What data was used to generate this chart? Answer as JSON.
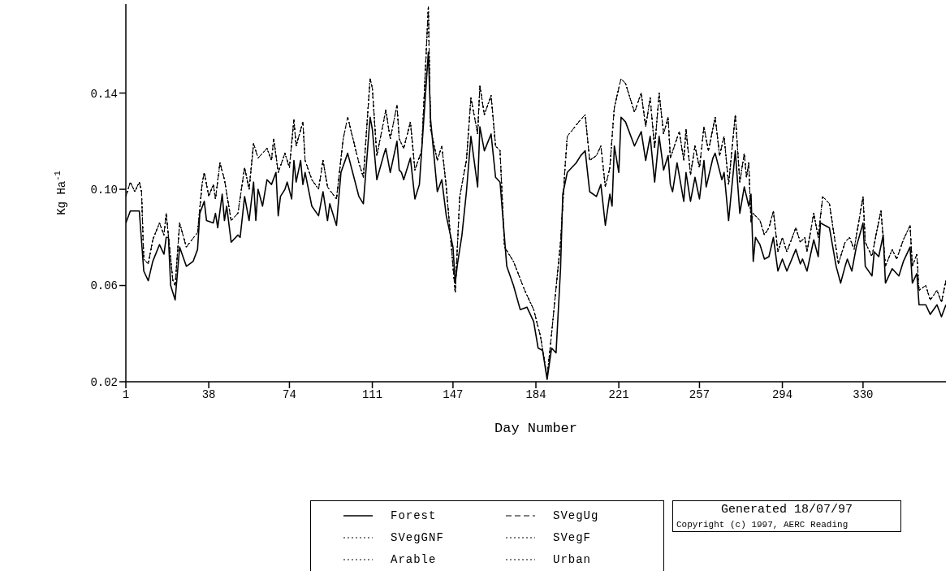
{
  "chart_data": {
    "type": "line",
    "xlabel": "Day Number",
    "ylabel": "Kg Ha$^{-1}$",
    "xlim": [
      1,
      367
    ],
    "xticks": [
      1,
      38,
      74,
      111,
      147,
      184,
      221,
      257,
      294,
      330
    ],
    "ylim": [
      0.02,
      0.177
    ],
    "yticks": [
      {
        "value": 0.02,
        "label": "0.02"
      },
      {
        "value": 0.06,
        "label": "0.06"
      },
      {
        "value": 0.1,
        "label": "0.10"
      },
      {
        "value": 0.14,
        "label": "0.14"
      }
    ],
    "grid": false,
    "legend": "bottom",
    "marker": "none",
    "series": [
      {
        "name": "Forest",
        "color": "#000000",
        "line_style": "solid",
        "x": [
          1,
          3,
          7,
          9,
          11,
          13,
          16,
          18,
          19,
          20,
          21,
          23,
          25,
          28,
          31,
          33,
          34,
          36,
          37,
          40,
          41,
          42,
          44,
          45,
          46,
          48,
          51,
          52,
          54,
          56,
          58,
          59,
          60,
          62,
          64,
          66,
          68,
          69,
          70,
          72,
          73,
          75,
          76,
          77,
          79,
          80,
          81,
          84,
          87,
          89,
          91,
          92,
          95,
          97,
          100,
          105,
          107,
          110,
          111,
          113,
          116,
          117,
          119,
          122,
          123,
          124,
          125,
          128,
          130,
          132,
          136,
          137,
          140,
          142,
          144,
          147,
          148,
          149,
          151,
          153,
          155,
          158,
          159,
          161,
          164,
          166,
          168,
          171,
          174,
          177,
          180,
          183,
          185,
          187,
          189,
          191,
          193,
          195,
          196,
          198,
          202,
          204,
          206,
          208,
          211,
          213,
          215,
          217,
          218,
          219,
          221,
          222,
          224,
          228,
          231,
          233,
          235,
          237,
          239,
          241,
          243,
          244,
          245,
          247,
          250,
          251,
          253,
          255,
          257,
          259,
          260,
          263,
          264,
          267,
          268,
          270,
          273,
          275,
          277,
          279,
          280,
          281,
          282,
          284,
          286,
          288,
          290,
          292,
          294,
          296,
          300,
          302,
          303,
          305,
          308,
          310,
          311,
          315,
          318,
          320,
          322,
          323,
          325,
          327,
          330,
          331,
          334,
          335,
          337,
          339,
          340,
          343,
          346,
          348,
          351,
          352,
          354,
          355,
          358,
          360,
          363,
          365,
          367
        ],
        "values": [
          0.086,
          0.091,
          0.091,
          0.066,
          0.062,
          0.07,
          0.077,
          0.073,
          0.08,
          0.08,
          0.06,
          0.054,
          0.076,
          0.068,
          0.07,
          0.075,
          0.09,
          0.095,
          0.087,
          0.086,
          0.09,
          0.084,
          0.098,
          0.087,
          0.093,
          0.078,
          0.081,
          0.08,
          0.097,
          0.087,
          0.103,
          0.087,
          0.1,
          0.093,
          0.104,
          0.102,
          0.107,
          0.089,
          0.097,
          0.1,
          0.103,
          0.096,
          0.112,
          0.103,
          0.112,
          0.102,
          0.107,
          0.093,
          0.089,
          0.099,
          0.087,
          0.094,
          0.085,
          0.107,
          0.115,
          0.097,
          0.094,
          0.13,
          0.125,
          0.104,
          0.114,
          0.117,
          0.107,
          0.12,
          0.108,
          0.107,
          0.104,
          0.113,
          0.096,
          0.102,
          0.157,
          0.129,
          0.099,
          0.104,
          0.089,
          0.076,
          0.061,
          0.069,
          0.081,
          0.099,
          0.122,
          0.101,
          0.126,
          0.116,
          0.123,
          0.105,
          0.103,
          0.068,
          0.06,
          0.05,
          0.051,
          0.045,
          0.034,
          0.033,
          0.021,
          0.034,
          0.032,
          0.067,
          0.098,
          0.107,
          0.111,
          0.114,
          0.116,
          0.099,
          0.097,
          0.102,
          0.085,
          0.098,
          0.093,
          0.118,
          0.107,
          0.13,
          0.128,
          0.118,
          0.124,
          0.112,
          0.122,
          0.103,
          0.122,
          0.108,
          0.114,
          0.102,
          0.099,
          0.111,
          0.095,
          0.107,
          0.095,
          0.105,
          0.096,
          0.112,
          0.101,
          0.113,
          0.115,
          0.104,
          0.107,
          0.087,
          0.116,
          0.09,
          0.101,
          0.093,
          0.098,
          0.07,
          0.08,
          0.077,
          0.071,
          0.072,
          0.08,
          0.066,
          0.071,
          0.066,
          0.075,
          0.069,
          0.071,
          0.066,
          0.079,
          0.072,
          0.086,
          0.084,
          0.068,
          0.061,
          0.068,
          0.071,
          0.066,
          0.076,
          0.086,
          0.068,
          0.064,
          0.074,
          0.072,
          0.081,
          0.061,
          0.067,
          0.064,
          0.07,
          0.076,
          0.061,
          0.065,
          0.052,
          0.052,
          0.048,
          0.052,
          0.047,
          0.052
        ]
      },
      {
        "name": "SVegUg",
        "color": "#000000",
        "line_style": "dashed",
        "x": [
          1,
          3,
          5,
          7,
          8,
          9,
          11,
          13,
          16,
          18,
          19,
          22,
          23,
          25,
          28,
          33,
          35,
          36,
          38,
          40,
          41,
          43,
          45,
          48,
          51,
          54,
          56,
          58,
          60,
          64,
          66,
          67,
          69,
          72,
          74,
          76,
          77,
          80,
          81,
          84,
          87,
          89,
          91,
          95,
          98,
          100,
          105,
          107,
          110,
          111,
          113,
          116,
          117,
          119,
          122,
          123,
          125,
          128,
          130,
          133,
          136,
          137,
          140,
          142,
          144,
          148,
          150,
          153,
          155,
          158,
          159,
          161,
          164,
          166,
          168,
          170,
          174,
          179,
          183,
          186,
          189,
          191,
          195,
          197,
          198,
          204,
          206,
          208,
          211,
          213,
          215,
          217,
          219,
          222,
          224,
          228,
          231,
          233,
          235,
          237,
          239,
          241,
          243,
          244,
          248,
          250,
          251,
          253,
          255,
          257,
          259,
          261,
          264,
          266,
          268,
          270,
          273,
          275,
          277,
          278,
          279,
          280,
          281,
          284,
          286,
          288,
          290,
          292,
          294,
          296,
          300,
          302,
          304,
          305,
          308,
          310,
          312,
          315,
          319,
          322,
          324,
          326,
          330,
          331,
          334,
          336,
          338,
          340,
          343,
          345,
          348,
          351,
          352,
          354,
          355,
          358,
          360,
          363,
          365,
          367
        ],
        "values": [
          0.097,
          0.103,
          0.099,
          0.103,
          0.099,
          0.071,
          0.069,
          0.079,
          0.086,
          0.081,
          0.09,
          0.062,
          0.06,
          0.086,
          0.076,
          0.082,
          0.102,
          0.107,
          0.097,
          0.102,
          0.096,
          0.111,
          0.104,
          0.087,
          0.09,
          0.109,
          0.1,
          0.119,
          0.113,
          0.117,
          0.112,
          0.121,
          0.107,
          0.115,
          0.109,
          0.129,
          0.118,
          0.128,
          0.112,
          0.104,
          0.1,
          0.112,
          0.101,
          0.096,
          0.121,
          0.13,
          0.111,
          0.105,
          0.146,
          0.142,
          0.114,
          0.128,
          0.133,
          0.121,
          0.135,
          0.121,
          0.117,
          0.128,
          0.108,
          0.116,
          0.176,
          0.125,
          0.112,
          0.118,
          0.101,
          0.057,
          0.097,
          0.112,
          0.138,
          0.123,
          0.143,
          0.131,
          0.139,
          0.118,
          0.116,
          0.076,
          0.07,
          0.058,
          0.05,
          0.039,
          0.022,
          0.04,
          0.078,
          0.109,
          0.122,
          0.129,
          0.131,
          0.112,
          0.114,
          0.118,
          0.101,
          0.109,
          0.134,
          0.146,
          0.144,
          0.132,
          0.14,
          0.126,
          0.138,
          0.117,
          0.14,
          0.123,
          0.13,
          0.113,
          0.124,
          0.112,
          0.125,
          0.106,
          0.118,
          0.109,
          0.126,
          0.116,
          0.13,
          0.114,
          0.122,
          0.102,
          0.131,
          0.103,
          0.115,
          0.105,
          0.111,
          0.086,
          0.09,
          0.087,
          0.081,
          0.084,
          0.091,
          0.074,
          0.08,
          0.074,
          0.084,
          0.078,
          0.08,
          0.074,
          0.09,
          0.08,
          0.097,
          0.094,
          0.069,
          0.078,
          0.08,
          0.075,
          0.097,
          0.078,
          0.072,
          0.082,
          0.091,
          0.068,
          0.075,
          0.071,
          0.079,
          0.085,
          0.068,
          0.073,
          0.058,
          0.06,
          0.054,
          0.058,
          0.053,
          0.062
        ]
      },
      {
        "name": "SVegGNF",
        "color": "#000000",
        "line_style": "dotted",
        "x": [
          1,
          3,
          5,
          7,
          8,
          9,
          11,
          13,
          16,
          18,
          19,
          22,
          23,
          25,
          28,
          33,
          35,
          36,
          38,
          40,
          41,
          43,
          45,
          48,
          51,
          54,
          56,
          58,
          60,
          64,
          66,
          67,
          69,
          72,
          74,
          76,
          77,
          80,
          81,
          84,
          87,
          89,
          91,
          95,
          98,
          100,
          105,
          107,
          110,
          111,
          113,
          116,
          117,
          119,
          122,
          123,
          125,
          128,
          130,
          133,
          136,
          137,
          140,
          142,
          144,
          148,
          150,
          153,
          155,
          158,
          159,
          161,
          164,
          166,
          168,
          170,
          174,
          179,
          183,
          186,
          189,
          191,
          195,
          197,
          198,
          204,
          206,
          208,
          211,
          213,
          215,
          217,
          219,
          222,
          224,
          228,
          231,
          233,
          235,
          237,
          239,
          241,
          243,
          244,
          248,
          250,
          251,
          253,
          255,
          257,
          259,
          261,
          264,
          266,
          268,
          270,
          273,
          275,
          277,
          278,
          279,
          280,
          281,
          284,
          286,
          288,
          290,
          292,
          294,
          296,
          300,
          302,
          304,
          305,
          308,
          310,
          312,
          315,
          319,
          322,
          324,
          326,
          330,
          331,
          334,
          336,
          338,
          340,
          343,
          345,
          348,
          351,
          352,
          354,
          355,
          358,
          360,
          363,
          365,
          367
        ],
        "values": [
          0.097,
          0.103,
          0.099,
          0.103,
          0.099,
          0.071,
          0.069,
          0.079,
          0.086,
          0.081,
          0.09,
          0.062,
          0.06,
          0.086,
          0.076,
          0.082,
          0.102,
          0.107,
          0.097,
          0.102,
          0.096,
          0.111,
          0.104,
          0.087,
          0.09,
          0.109,
          0.1,
          0.119,
          0.113,
          0.117,
          0.112,
          0.121,
          0.107,
          0.115,
          0.109,
          0.129,
          0.118,
          0.128,
          0.112,
          0.104,
          0.1,
          0.112,
          0.101,
          0.096,
          0.121,
          0.13,
          0.111,
          0.105,
          0.146,
          0.142,
          0.114,
          0.128,
          0.133,
          0.121,
          0.135,
          0.121,
          0.117,
          0.128,
          0.108,
          0.116,
          0.176,
          0.125,
          0.112,
          0.118,
          0.101,
          0.057,
          0.097,
          0.112,
          0.138,
          0.123,
          0.143,
          0.131,
          0.139,
          0.118,
          0.116,
          0.076,
          0.07,
          0.058,
          0.05,
          0.039,
          0.022,
          0.04,
          0.078,
          0.109,
          0.122,
          0.129,
          0.131,
          0.112,
          0.114,
          0.118,
          0.101,
          0.109,
          0.134,
          0.146,
          0.144,
          0.132,
          0.14,
          0.126,
          0.138,
          0.117,
          0.14,
          0.123,
          0.13,
          0.113,
          0.124,
          0.112,
          0.125,
          0.106,
          0.118,
          0.109,
          0.126,
          0.116,
          0.13,
          0.114,
          0.122,
          0.102,
          0.131,
          0.103,
          0.115,
          0.105,
          0.111,
          0.086,
          0.09,
          0.087,
          0.081,
          0.084,
          0.091,
          0.074,
          0.08,
          0.074,
          0.084,
          0.078,
          0.08,
          0.074,
          0.09,
          0.08,
          0.097,
          0.094,
          0.069,
          0.078,
          0.08,
          0.075,
          0.097,
          0.078,
          0.072,
          0.082,
          0.091,
          0.068,
          0.075,
          0.071,
          0.079,
          0.085,
          0.068,
          0.073,
          0.058,
          0.06,
          0.054,
          0.058,
          0.053,
          0.062
        ]
      },
      {
        "name": "SVegF",
        "color": "#000000",
        "line_style": "dotted",
        "x": [
          1,
          3,
          5,
          7,
          8,
          9,
          11,
          13,
          16,
          18,
          19,
          22,
          23,
          25,
          28,
          33,
          35,
          36,
          38,
          40,
          41,
          43,
          45,
          48,
          51,
          54,
          56,
          58,
          60,
          64,
          66,
          67,
          69,
          72,
          74,
          76,
          77,
          80,
          81,
          84,
          87,
          89,
          91,
          95,
          98,
          100,
          105,
          107,
          110,
          111,
          113,
          116,
          117,
          119,
          122,
          123,
          125,
          128,
          130,
          133,
          136,
          137,
          140,
          142,
          144,
          148,
          150,
          153,
          155,
          158,
          159,
          161,
          164,
          166,
          168,
          170,
          174,
          179,
          183,
          186,
          189,
          191,
          195,
          197,
          198,
          204,
          206,
          208,
          211,
          213,
          215,
          217,
          219,
          222,
          224,
          228,
          231,
          233,
          235,
          237,
          239,
          241,
          243,
          244,
          248,
          250,
          251,
          253,
          255,
          257,
          259,
          261,
          264,
          266,
          268,
          270,
          273,
          275,
          277,
          278,
          279,
          280,
          281,
          284,
          286,
          288,
          290,
          292,
          294,
          296,
          300,
          302,
          304,
          305,
          308,
          310,
          312,
          315,
          319,
          322,
          324,
          326,
          330,
          331,
          334,
          336,
          338,
          340,
          343,
          345,
          348,
          351,
          352,
          354,
          355,
          358,
          360,
          363,
          365,
          367
        ],
        "values": [
          0.097,
          0.103,
          0.099,
          0.103,
          0.099,
          0.071,
          0.069,
          0.079,
          0.086,
          0.081,
          0.09,
          0.062,
          0.06,
          0.086,
          0.076,
          0.082,
          0.102,
          0.107,
          0.097,
          0.102,
          0.096,
          0.111,
          0.104,
          0.087,
          0.09,
          0.109,
          0.1,
          0.119,
          0.113,
          0.117,
          0.112,
          0.121,
          0.107,
          0.115,
          0.109,
          0.129,
          0.118,
          0.128,
          0.112,
          0.104,
          0.1,
          0.112,
          0.101,
          0.096,
          0.121,
          0.13,
          0.111,
          0.105,
          0.146,
          0.142,
          0.114,
          0.128,
          0.133,
          0.121,
          0.135,
          0.121,
          0.117,
          0.128,
          0.108,
          0.116,
          0.176,
          0.125,
          0.112,
          0.118,
          0.101,
          0.057,
          0.097,
          0.112,
          0.138,
          0.123,
          0.143,
          0.131,
          0.139,
          0.118,
          0.116,
          0.076,
          0.07,
          0.058,
          0.05,
          0.039,
          0.022,
          0.04,
          0.078,
          0.109,
          0.122,
          0.129,
          0.131,
          0.112,
          0.114,
          0.118,
          0.101,
          0.109,
          0.134,
          0.146,
          0.144,
          0.132,
          0.14,
          0.126,
          0.138,
          0.117,
          0.14,
          0.123,
          0.13,
          0.113,
          0.124,
          0.112,
          0.125,
          0.106,
          0.118,
          0.109,
          0.126,
          0.116,
          0.13,
          0.114,
          0.122,
          0.102,
          0.131,
          0.103,
          0.115,
          0.105,
          0.111,
          0.086,
          0.09,
          0.087,
          0.081,
          0.084,
          0.091,
          0.074,
          0.08,
          0.074,
          0.084,
          0.078,
          0.08,
          0.074,
          0.09,
          0.08,
          0.097,
          0.094,
          0.069,
          0.078,
          0.08,
          0.075,
          0.097,
          0.078,
          0.072,
          0.082,
          0.091,
          0.068,
          0.075,
          0.071,
          0.079,
          0.085,
          0.068,
          0.073,
          0.058,
          0.06,
          0.054,
          0.058,
          0.053,
          0.062
        ]
      },
      {
        "name": "Arable",
        "color": "#000000",
        "line_style": "dotted",
        "x": [
          1,
          3,
          5,
          7,
          8,
          9,
          11,
          13,
          16,
          18,
          19,
          22,
          23,
          25,
          28,
          33,
          35,
          36,
          38,
          40,
          41,
          43,
          45,
          48,
          51,
          54,
          56,
          58,
          60,
          64,
          66,
          67,
          69,
          72,
          74,
          76,
          77,
          80,
          81,
          84,
          87,
          89,
          91,
          95,
          98,
          100,
          105,
          107,
          110,
          111,
          113,
          116,
          117,
          119,
          122,
          123,
          125,
          128,
          130,
          133,
          136,
          137,
          140,
          142,
          144,
          148,
          150,
          153,
          155,
          158,
          159,
          161,
          164,
          166,
          168,
          170,
          174,
          179,
          183,
          186,
          189,
          191,
          195,
          197,
          198,
          204,
          206,
          208,
          211,
          213,
          215,
          217,
          219,
          222,
          224,
          228,
          231,
          233,
          235,
          237,
          239,
          241,
          243,
          244,
          248,
          250,
          251,
          253,
          255,
          257,
          259,
          261,
          264,
          266,
          268,
          270,
          273,
          275,
          277,
          278,
          279,
          280,
          281,
          284,
          286,
          288,
          290,
          292,
          294,
          296,
          300,
          302,
          304,
          305,
          308,
          310,
          312,
          315,
          319,
          322,
          324,
          326,
          330,
          331,
          334,
          336,
          338,
          340,
          343,
          345,
          348,
          351,
          352,
          354,
          355,
          358,
          360,
          363,
          365,
          367
        ],
        "values": [
          0.097,
          0.103,
          0.099,
          0.103,
          0.099,
          0.071,
          0.069,
          0.079,
          0.086,
          0.081,
          0.09,
          0.062,
          0.06,
          0.086,
          0.076,
          0.082,
          0.102,
          0.107,
          0.097,
          0.102,
          0.096,
          0.111,
          0.104,
          0.087,
          0.09,
          0.109,
          0.1,
          0.119,
          0.113,
          0.117,
          0.112,
          0.121,
          0.107,
          0.115,
          0.109,
          0.129,
          0.118,
          0.128,
          0.112,
          0.104,
          0.1,
          0.112,
          0.101,
          0.096,
          0.121,
          0.13,
          0.111,
          0.105,
          0.146,
          0.142,
          0.114,
          0.128,
          0.133,
          0.121,
          0.135,
          0.121,
          0.117,
          0.128,
          0.108,
          0.116,
          0.176,
          0.125,
          0.112,
          0.118,
          0.101,
          0.057,
          0.097,
          0.112,
          0.138,
          0.123,
          0.143,
          0.131,
          0.139,
          0.118,
          0.116,
          0.076,
          0.07,
          0.058,
          0.05,
          0.039,
          0.022,
          0.04,
          0.078,
          0.109,
          0.122,
          0.129,
          0.131,
          0.112,
          0.114,
          0.118,
          0.101,
          0.109,
          0.134,
          0.146,
          0.144,
          0.132,
          0.14,
          0.126,
          0.138,
          0.117,
          0.14,
          0.123,
          0.13,
          0.113,
          0.124,
          0.112,
          0.125,
          0.106,
          0.118,
          0.109,
          0.126,
          0.116,
          0.13,
          0.114,
          0.122,
          0.102,
          0.131,
          0.103,
          0.115,
          0.105,
          0.111,
          0.086,
          0.09,
          0.087,
          0.081,
          0.084,
          0.091,
          0.074,
          0.08,
          0.074,
          0.084,
          0.078,
          0.08,
          0.074,
          0.09,
          0.08,
          0.097,
          0.094,
          0.069,
          0.078,
          0.08,
          0.075,
          0.097,
          0.078,
          0.072,
          0.082,
          0.091,
          0.068,
          0.075,
          0.071,
          0.079,
          0.085,
          0.068,
          0.073,
          0.058,
          0.06,
          0.054,
          0.058,
          0.053,
          0.062
        ]
      },
      {
        "name": "Urban",
        "color": "#000000",
        "line_style": "dotted",
        "x": [
          1,
          3,
          5,
          7,
          8,
          9,
          11,
          13,
          16,
          18,
          19,
          22,
          23,
          25,
          28,
          33,
          35,
          36,
          38,
          40,
          41,
          43,
          45,
          48,
          51,
          54,
          56,
          58,
          60,
          64,
          66,
          67,
          69,
          72,
          74,
          76,
          77,
          80,
          81,
          84,
          87,
          89,
          91,
          95,
          98,
          100,
          105,
          107,
          110,
          111,
          113,
          116,
          117,
          119,
          122,
          123,
          125,
          128,
          130,
          133,
          136,
          137,
          140,
          142,
          144,
          148,
          150,
          153,
          155,
          158,
          159,
          161,
          164,
          166,
          168,
          170,
          174,
          179,
          183,
          186,
          189,
          191,
          195,
          197,
          198,
          204,
          206,
          208,
          211,
          213,
          215,
          217,
          219,
          222,
          224,
          228,
          231,
          233,
          235,
          237,
          239,
          241,
          243,
          244,
          248,
          250,
          251,
          253,
          255,
          257,
          259,
          261,
          264,
          266,
          268,
          270,
          273,
          275,
          277,
          278,
          279,
          280,
          281,
          284,
          286,
          288,
          290,
          292,
          294,
          296,
          300,
          302,
          304,
          305,
          308,
          310,
          312,
          315,
          319,
          322,
          324,
          326,
          330,
          331,
          334,
          336,
          338,
          340,
          343,
          345,
          348,
          351,
          352,
          354,
          355,
          358,
          360,
          363,
          365,
          367
        ],
        "values": [
          0.097,
          0.103,
          0.099,
          0.103,
          0.099,
          0.071,
          0.069,
          0.079,
          0.086,
          0.081,
          0.09,
          0.062,
          0.06,
          0.086,
          0.076,
          0.082,
          0.102,
          0.107,
          0.097,
          0.102,
          0.096,
          0.111,
          0.104,
          0.087,
          0.09,
          0.109,
          0.1,
          0.119,
          0.113,
          0.117,
          0.112,
          0.121,
          0.107,
          0.115,
          0.109,
          0.129,
          0.118,
          0.128,
          0.112,
          0.104,
          0.1,
          0.112,
          0.101,
          0.096,
          0.121,
          0.13,
          0.111,
          0.105,
          0.146,
          0.142,
          0.114,
          0.128,
          0.133,
          0.121,
          0.135,
          0.121,
          0.117,
          0.128,
          0.108,
          0.116,
          0.176,
          0.125,
          0.112,
          0.118,
          0.101,
          0.057,
          0.097,
          0.112,
          0.138,
          0.123,
          0.143,
          0.131,
          0.139,
          0.118,
          0.116,
          0.076,
          0.07,
          0.058,
          0.05,
          0.039,
          0.022,
          0.04,
          0.078,
          0.109,
          0.122,
          0.129,
          0.131,
          0.112,
          0.114,
          0.118,
          0.101,
          0.109,
          0.134,
          0.146,
          0.144,
          0.132,
          0.14,
          0.126,
          0.138,
          0.117,
          0.14,
          0.123,
          0.13,
          0.113,
          0.124,
          0.112,
          0.125,
          0.106,
          0.118,
          0.109,
          0.126,
          0.116,
          0.13,
          0.114,
          0.122,
          0.102,
          0.131,
          0.103,
          0.115,
          0.105,
          0.111,
          0.086,
          0.09,
          0.087,
          0.081,
          0.084,
          0.091,
          0.074,
          0.08,
          0.074,
          0.084,
          0.078,
          0.08,
          0.074,
          0.09,
          0.08,
          0.097,
          0.094,
          0.069,
          0.078,
          0.08,
          0.075,
          0.097,
          0.078,
          0.072,
          0.082,
          0.091,
          0.068,
          0.075,
          0.071,
          0.079,
          0.085,
          0.068,
          0.073,
          0.058,
          0.06,
          0.054,
          0.058,
          0.053,
          0.062
        ]
      }
    ],
    "annotations": [
      "Generated 18/07/97",
      "Copyright (c) 1997, AERC Reading"
    ]
  }
}
